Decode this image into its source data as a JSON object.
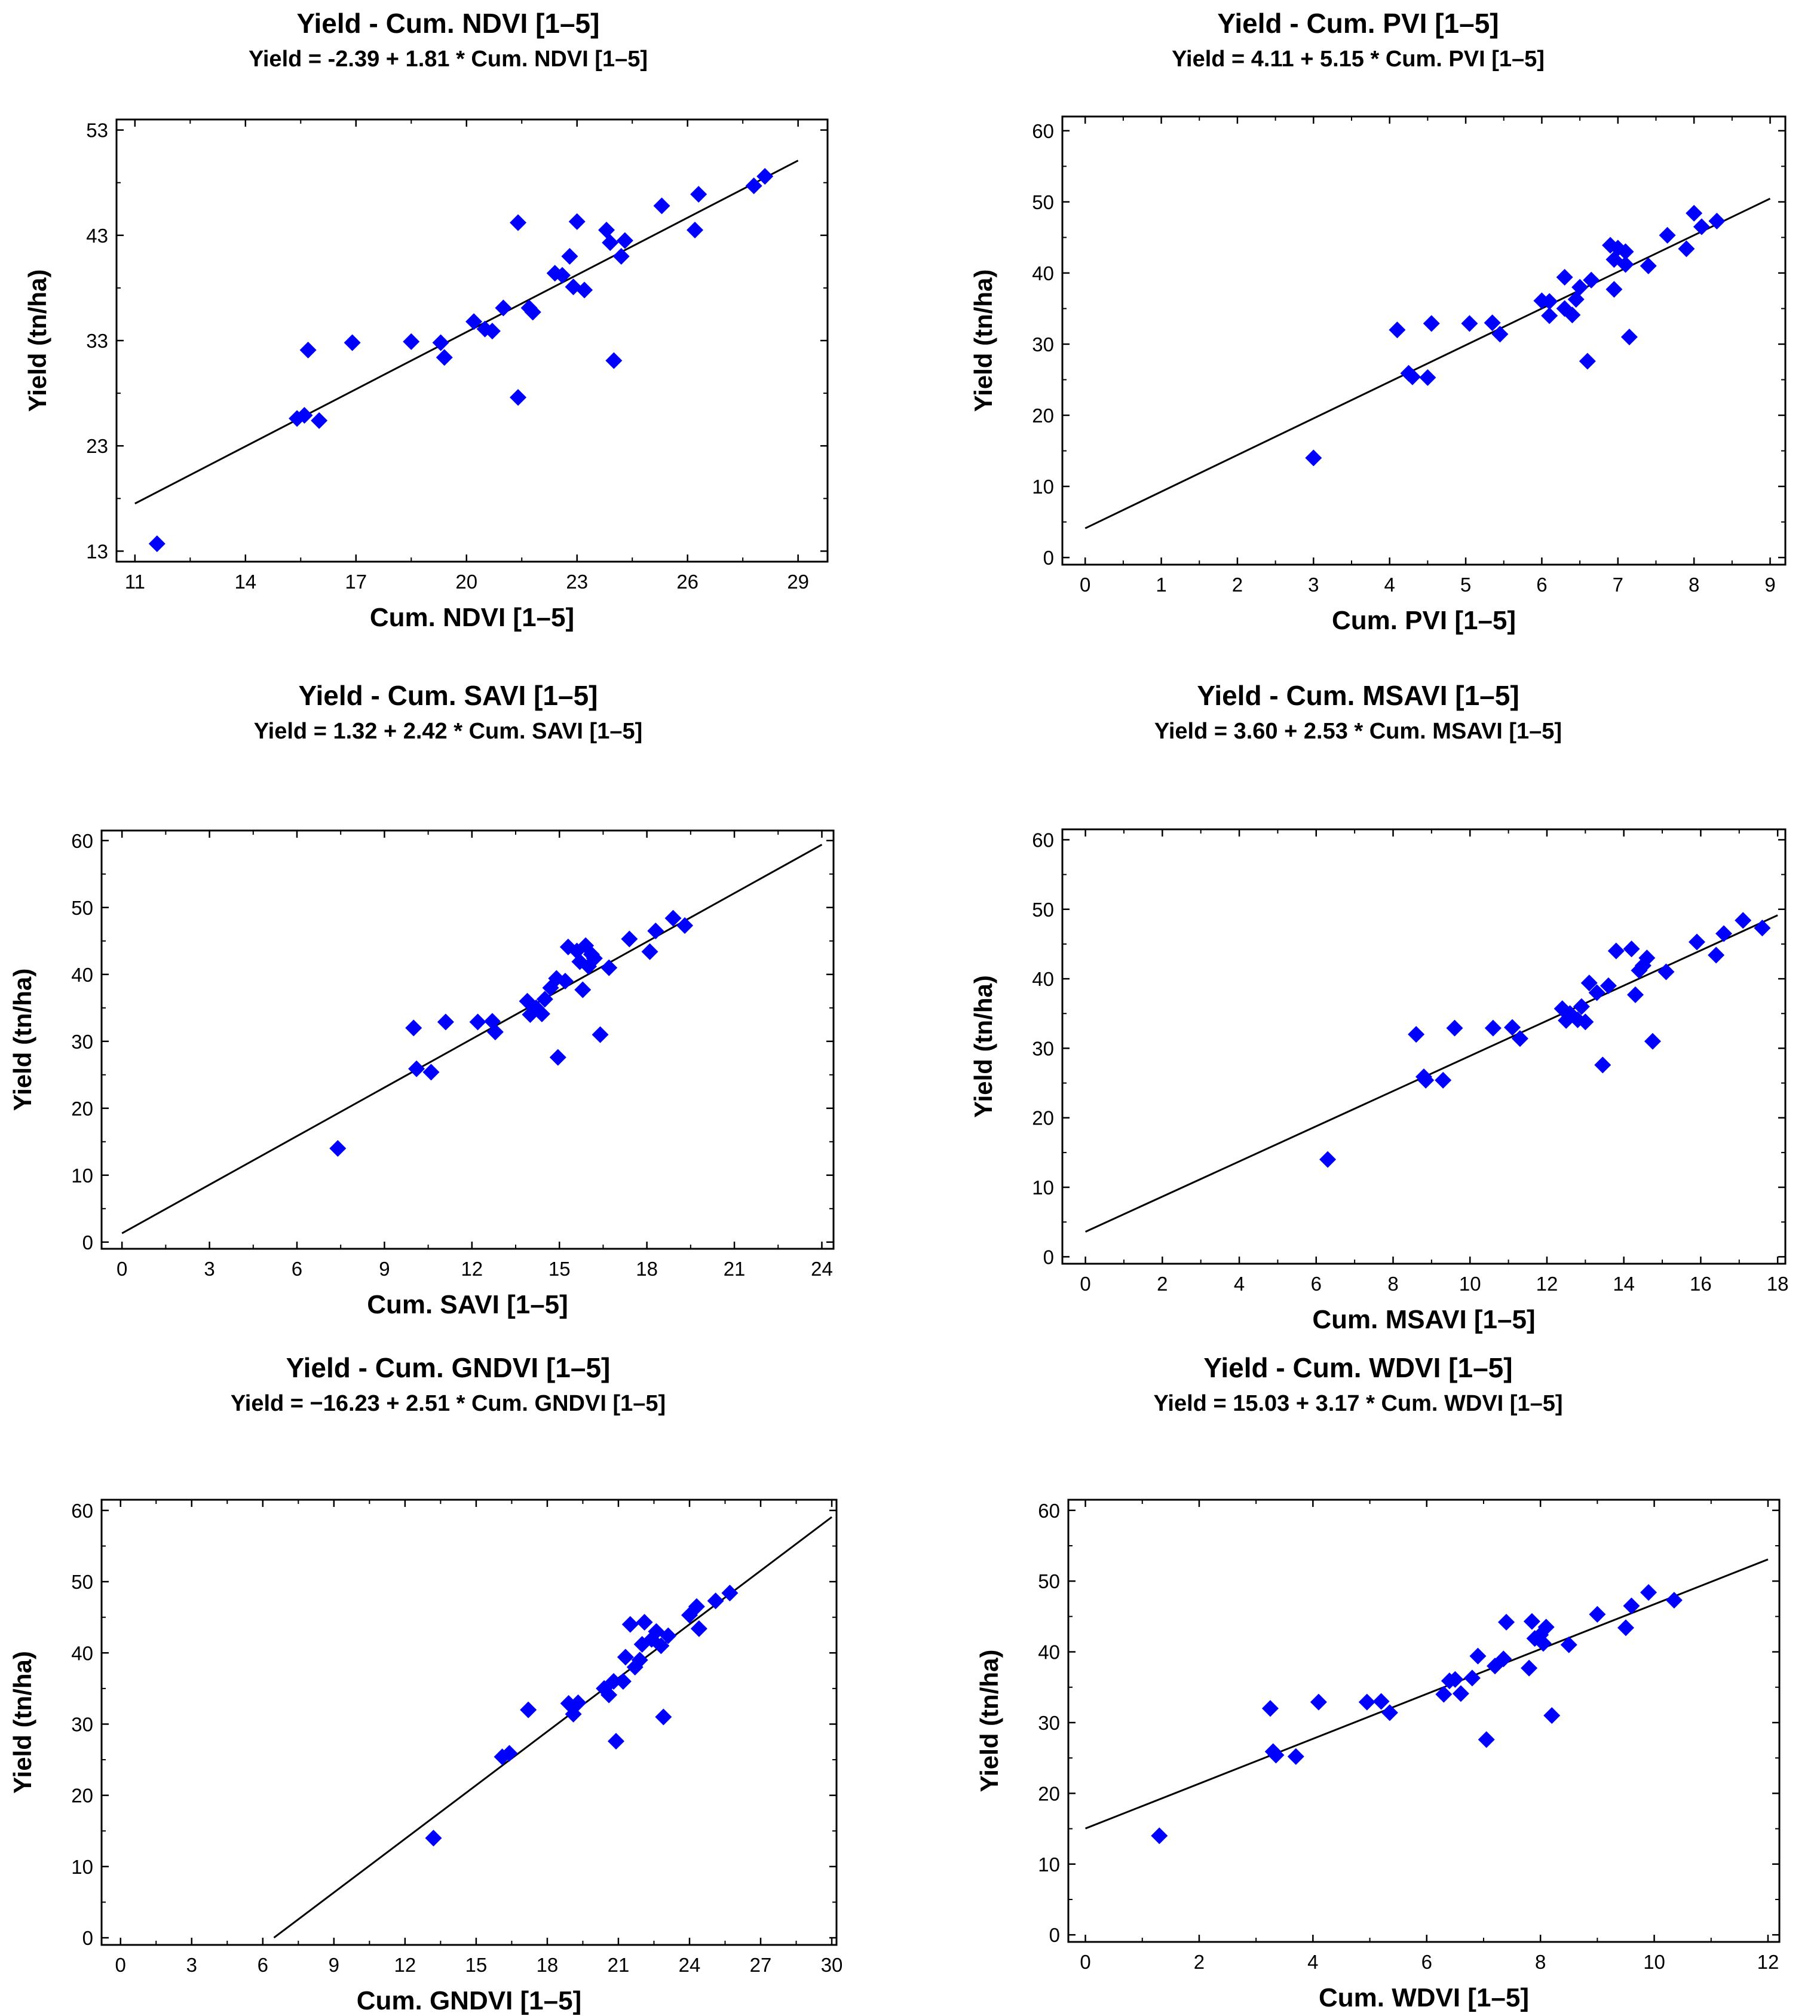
{
  "colors": {
    "point": "#0000ff",
    "line": "#000000",
    "frame": "#000000"
  },
  "chart_data": [
    {
      "type": "scatter",
      "title": "Yield - Cum. NDVI [1–5]",
      "subtitle": "Yield = -2.39 + 1.81 * Cum. NDVI [1–5]",
      "xlabel": "Cum. NDVI [1–5]",
      "ylabel": "Yield (tn/ha)",
      "xlim": [
        10.5,
        29.8
      ],
      "ylim": [
        12,
        54
      ],
      "xticks": [
        11,
        14,
        17,
        20,
        23,
        26,
        29
      ],
      "yticks": [
        13,
        23,
        33,
        43,
        53
      ],
      "tick_labels_x": [
        "11",
        "14",
        "17",
        "20",
        "23",
        "26",
        "29"
      ],
      "tick_labels_y": [
        "13",
        "23",
        "33",
        "43",
        "53"
      ],
      "intercept": -2.39,
      "slope": 1.81,
      "line_x": [
        11,
        29
      ],
      "points": [
        [
          11.6,
          13.7
        ],
        [
          15.4,
          25.6
        ],
        [
          15.6,
          25.9
        ],
        [
          16.0,
          25.4
        ],
        [
          15.7,
          32.1
        ],
        [
          16.9,
          32.8
        ],
        [
          18.5,
          32.9
        ],
        [
          19.3,
          32.8
        ],
        [
          19.4,
          31.4
        ],
        [
          20.2,
          34.8
        ],
        [
          20.5,
          34.1
        ],
        [
          20.7,
          33.9
        ],
        [
          21.0,
          36.1
        ],
        [
          21.4,
          44.2
        ],
        [
          21.4,
          27.6
        ],
        [
          21.7,
          36.1
        ],
        [
          21.8,
          35.7
        ],
        [
          22.4,
          39.4
        ],
        [
          22.6,
          39.2
        ],
        [
          22.8,
          41.0
        ],
        [
          22.9,
          38.1
        ],
        [
          23.0,
          44.3
        ],
        [
          23.2,
          37.8
        ],
        [
          23.8,
          43.5
        ],
        [
          23.9,
          42.3
        ],
        [
          24.0,
          31.1
        ],
        [
          24.2,
          41.0
        ],
        [
          24.3,
          42.5
        ],
        [
          25.3,
          45.8
        ],
        [
          26.2,
          43.5
        ],
        [
          26.3,
          46.9
        ],
        [
          27.8,
          47.7
        ],
        [
          28.1,
          48.6
        ]
      ],
      "grid": false
    },
    {
      "type": "scatter",
      "title": "Yield - Cum. PVI [1–5]",
      "subtitle": "Yield = 4.11 + 5.15 * Cum. PVI [1–5]",
      "xlabel": "Cum. PVI [1–5]",
      "ylabel": "Yield (tn/ha)",
      "xlim": [
        -0.3,
        9.2
      ],
      "ylim": [
        -1,
        62
      ],
      "xticks": [
        0,
        1,
        2,
        3,
        4,
        5,
        6,
        7,
        8,
        9
      ],
      "yticks": [
        0,
        10,
        20,
        30,
        40,
        50,
        60
      ],
      "tick_labels_x": [
        "0",
        "1",
        "2",
        "3",
        "4",
        "5",
        "6",
        "7",
        "8",
        "9"
      ],
      "tick_labels_y": [
        "0",
        "10",
        "20",
        "30",
        "40",
        "50",
        "60"
      ],
      "intercept": 4.11,
      "slope": 5.15,
      "line_x": [
        0,
        9
      ],
      "points": [
        [
          3.0,
          14.0
        ],
        [
          4.1,
          32.0
        ],
        [
          4.25,
          25.9
        ],
        [
          4.3,
          25.4
        ],
        [
          4.5,
          25.3
        ],
        [
          4.55,
          32.9
        ],
        [
          5.05,
          32.9
        ],
        [
          5.35,
          33.0
        ],
        [
          5.45,
          31.4
        ],
        [
          6.0,
          36.1
        ],
        [
          6.1,
          36.0
        ],
        [
          6.1,
          34.0
        ],
        [
          6.3,
          35.0
        ],
        [
          6.3,
          39.4
        ],
        [
          6.4,
          34.1
        ],
        [
          6.45,
          36.3
        ],
        [
          6.5,
          38.0
        ],
        [
          6.6,
          27.6
        ],
        [
          6.65,
          39.0
        ],
        [
          6.9,
          43.9
        ],
        [
          6.95,
          41.9
        ],
        [
          6.95,
          37.7
        ],
        [
          7.0,
          43.5
        ],
        [
          7.1,
          41.2
        ],
        [
          7.1,
          43.0
        ],
        [
          7.15,
          31.0
        ],
        [
          7.4,
          41.0
        ],
        [
          7.65,
          45.3
        ],
        [
          7.9,
          43.4
        ],
        [
          8.0,
          48.4
        ],
        [
          8.1,
          46.5
        ],
        [
          8.3,
          47.3
        ]
      ],
      "grid": false
    },
    {
      "type": "scatter",
      "title": "Yield - Cum. SAVI [1–5]",
      "subtitle": "Yield = 1.32 + 2.42 * Cum. SAVI [1–5]",
      "xlabel": "Cum. SAVI [1–5]",
      "ylabel": "Yield (tn/ha)",
      "xlim": [
        -0.7,
        24.4
      ],
      "ylim": [
        -1,
        61.5
      ],
      "xticks": [
        0,
        3,
        6,
        9,
        12,
        15,
        18,
        21,
        24
      ],
      "yticks": [
        0,
        10,
        20,
        30,
        40,
        50,
        60
      ],
      "tick_labels_x": [
        "0",
        "3",
        "6",
        "9",
        "12",
        "15",
        "18",
        "21",
        "24"
      ],
      "tick_labels_y": [
        "0",
        "10",
        "20",
        "30",
        "40",
        "50",
        "60"
      ],
      "intercept": 1.32,
      "slope": 2.42,
      "line_x": [
        0,
        24
      ],
      "points": [
        [
          7.4,
          14.0
        ],
        [
          10.0,
          32.0
        ],
        [
          10.1,
          25.9
        ],
        [
          10.6,
          25.4
        ],
        [
          11.1,
          32.9
        ],
        [
          12.2,
          32.9
        ],
        [
          12.7,
          33.0
        ],
        [
          12.8,
          31.4
        ],
        [
          13.9,
          36.0
        ],
        [
          14.0,
          34.0
        ],
        [
          14.2,
          35.0
        ],
        [
          14.4,
          34.1
        ],
        [
          14.5,
          36.3
        ],
        [
          14.7,
          38.0
        ],
        [
          14.9,
          39.4
        ],
        [
          14.95,
          27.6
        ],
        [
          15.2,
          39.0
        ],
        [
          15.3,
          44.1
        ],
        [
          15.6,
          43.5
        ],
        [
          15.7,
          41.9
        ],
        [
          15.8,
          37.7
        ],
        [
          15.9,
          44.3
        ],
        [
          16.0,
          41.2
        ],
        [
          16.1,
          43.0
        ],
        [
          16.2,
          42.4
        ],
        [
          16.4,
          31.0
        ],
        [
          16.7,
          41.0
        ],
        [
          17.4,
          45.3
        ],
        [
          18.1,
          43.4
        ],
        [
          18.3,
          46.5
        ],
        [
          18.9,
          48.4
        ],
        [
          19.3,
          47.3
        ]
      ],
      "grid": false
    },
    {
      "type": "scatter",
      "title": "Yield - Cum. MSAVI [1–5]",
      "subtitle": "Yield = 3.60 + 2.53 * Cum. MSAVI [1–5]",
      "xlabel": "Cum. MSAVI [1–5]",
      "ylabel": "Yield (tn/ha)",
      "xlim": [
        -0.6,
        18.2
      ],
      "ylim": [
        -1,
        61.5
      ],
      "xticks": [
        0,
        2,
        4,
        6,
        8,
        10,
        12,
        14,
        16,
        18
      ],
      "yticks": [
        0,
        10,
        20,
        30,
        40,
        50,
        60
      ],
      "tick_labels_x": [
        "0",
        "2",
        "4",
        "6",
        "8",
        "10",
        "12",
        "14",
        "16",
        "18"
      ],
      "tick_labels_y": [
        "0",
        "10",
        "20",
        "30",
        "40",
        "50",
        "60"
      ],
      "intercept": 3.6,
      "slope": 2.53,
      "line_x": [
        0,
        18
      ],
      "points": [
        [
          6.3,
          14.0
        ],
        [
          8.6,
          32.0
        ],
        [
          8.8,
          25.9
        ],
        [
          8.85,
          25.4
        ],
        [
          9.3,
          25.4
        ],
        [
          9.6,
          32.9
        ],
        [
          10.6,
          32.9
        ],
        [
          11.1,
          33.0
        ],
        [
          11.3,
          31.4
        ],
        [
          12.4,
          35.7
        ],
        [
          12.5,
          34.0
        ],
        [
          12.6,
          35.0
        ],
        [
          12.8,
          34.1
        ],
        [
          12.9,
          36.0
        ],
        [
          13.0,
          33.8
        ],
        [
          13.1,
          39.4
        ],
        [
          13.3,
          38.0
        ],
        [
          13.45,
          27.6
        ],
        [
          13.6,
          39.0
        ],
        [
          13.8,
          44.0
        ],
        [
          14.2,
          44.3
        ],
        [
          14.3,
          37.7
        ],
        [
          14.4,
          41.2
        ],
        [
          14.5,
          41.9
        ],
        [
          14.6,
          43.0
        ],
        [
          14.75,
          31.0
        ],
        [
          15.1,
          41.0
        ],
        [
          15.9,
          45.3
        ],
        [
          16.4,
          43.4
        ],
        [
          16.6,
          46.5
        ],
        [
          17.1,
          48.4
        ],
        [
          17.6,
          47.3
        ]
      ],
      "grid": false
    },
    {
      "type": "scatter",
      "title": "Yield - Cum. GNDVI [1–5]",
      "subtitle": "Yield = −16.23 + 2.51 * Cum. GNDVI [1–5]",
      "xlabel": "Cum. GNDVI [1–5]",
      "ylabel": "Yield (tn/ha)",
      "xlim": [
        -0.8,
        30.2
      ],
      "ylim": [
        -1,
        61.5
      ],
      "xticks": [
        0,
        3,
        6,
        9,
        12,
        15,
        18,
        21,
        24,
        27,
        30
      ],
      "yticks": [
        0,
        10,
        20,
        30,
        40,
        50,
        60
      ],
      "tick_labels_x": [
        "0",
        "3",
        "6",
        "9",
        "12",
        "15",
        "18",
        "21",
        "24",
        "27",
        "30"
      ],
      "tick_labels_y": [
        "0",
        "10",
        "20",
        "30",
        "40",
        "50",
        "60"
      ],
      "intercept": -16.23,
      "slope": 2.51,
      "line_x": [
        6.47,
        30
      ],
      "points": [
        [
          13.2,
          14.0
        ],
        [
          16.1,
          25.4
        ],
        [
          16.4,
          25.9
        ],
        [
          17.2,
          32.0
        ],
        [
          18.9,
          32.9
        ],
        [
          19.1,
          31.4
        ],
        [
          19.3,
          33.0
        ],
        [
          20.4,
          35.0
        ],
        [
          20.6,
          34.1
        ],
        [
          20.8,
          36.0
        ],
        [
          20.9,
          27.6
        ],
        [
          21.2,
          36.0
        ],
        [
          21.3,
          39.4
        ],
        [
          21.5,
          44.0
        ],
        [
          21.7,
          38.0
        ],
        [
          21.9,
          39.0
        ],
        [
          22.0,
          41.2
        ],
        [
          22.1,
          44.3
        ],
        [
          22.4,
          41.9
        ],
        [
          22.6,
          43.0
        ],
        [
          22.8,
          41.0
        ],
        [
          22.9,
          31.0
        ],
        [
          23.1,
          42.4
        ],
        [
          24.0,
          45.3
        ],
        [
          24.3,
          46.5
        ],
        [
          24.4,
          43.4
        ],
        [
          25.1,
          47.3
        ],
        [
          25.7,
          48.4
        ]
      ],
      "grid": false
    },
    {
      "type": "scatter",
      "title": "Yield - Cum. WDVI [1–5]",
      "subtitle": "Yield = 15.03 + 3.17 * Cum. WDVI [1–5]",
      "xlabel": "Cum. WDVI [1–5]",
      "ylabel": "Yield (tn/ha)",
      "xlim": [
        -0.3,
        12.2
      ],
      "ylim": [
        -1,
        61.5
      ],
      "xticks": [
        0,
        2,
        4,
        6,
        8,
        10,
        12
      ],
      "yticks": [
        0,
        10,
        20,
        30,
        40,
        50,
        60
      ],
      "tick_labels_x": [
        "0",
        "2",
        "4",
        "6",
        "8",
        "10",
        "12"
      ],
      "tick_labels_y": [
        "0",
        "10",
        "20",
        "30",
        "40",
        "50",
        "60"
      ],
      "intercept": 15.03,
      "slope": 3.17,
      "line_x": [
        0,
        12
      ],
      "points": [
        [
          1.3,
          14.0
        ],
        [
          3.25,
          32.0
        ],
        [
          3.3,
          25.9
        ],
        [
          3.35,
          25.4
        ],
        [
          3.7,
          25.2
        ],
        [
          4.1,
          32.9
        ],
        [
          4.95,
          32.9
        ],
        [
          5.2,
          33.0
        ],
        [
          5.35,
          31.4
        ],
        [
          6.3,
          34.0
        ],
        [
          6.4,
          35.9
        ],
        [
          6.5,
          36.1
        ],
        [
          6.6,
          34.1
        ],
        [
          6.8,
          36.3
        ],
        [
          6.9,
          39.4
        ],
        [
          7.05,
          27.6
        ],
        [
          7.2,
          38.0
        ],
        [
          7.35,
          39.0
        ],
        [
          7.4,
          44.2
        ],
        [
          7.8,
          37.7
        ],
        [
          7.85,
          44.3
        ],
        [
          7.9,
          41.9
        ],
        [
          8.0,
          42.4
        ],
        [
          8.05,
          41.2
        ],
        [
          8.1,
          43.5
        ],
        [
          8.2,
          31.0
        ],
        [
          8.5,
          41.0
        ],
        [
          9.0,
          45.3
        ],
        [
          9.5,
          43.4
        ],
        [
          9.6,
          46.5
        ],
        [
          9.9,
          48.4
        ],
        [
          10.35,
          47.3
        ]
      ],
      "grid": false
    }
  ]
}
